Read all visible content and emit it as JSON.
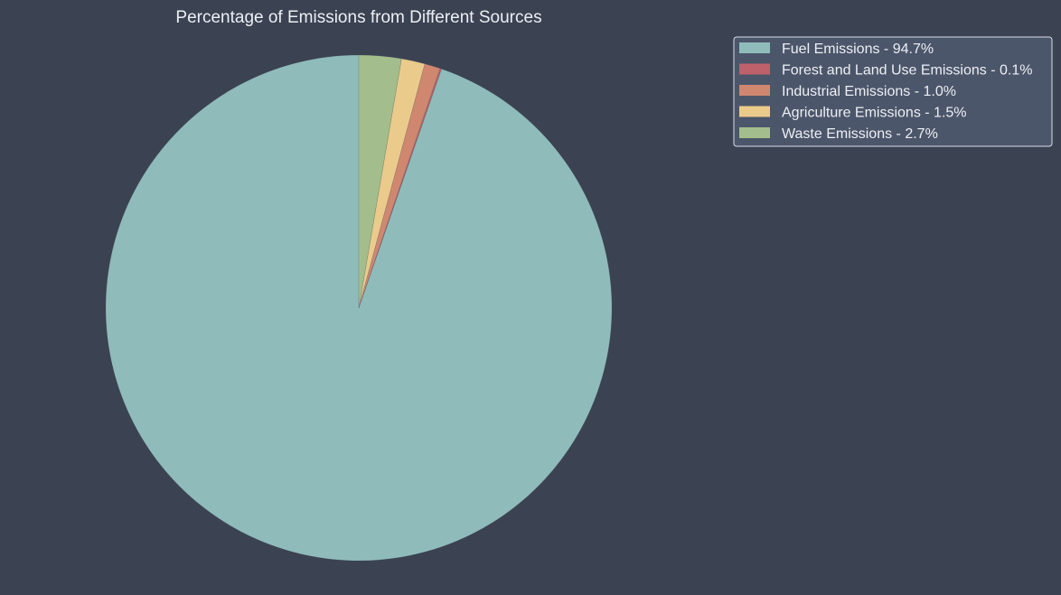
{
  "chart_data": {
    "type": "pie",
    "title": "Percentage of Emissions from Different Sources",
    "start_angle_deg": 90,
    "direction": "counterclockwise",
    "slices": [
      {
        "label": "Fuel Emissions",
        "value": 94.7,
        "legend": "Fuel Emissions - 94.7%",
        "color": "#8fbcbb"
      },
      {
        "label": "Forest and Land Use Emissions",
        "value": 0.1,
        "legend": "Forest and Land Use Emissions - 0.1%",
        "color": "#bf616a"
      },
      {
        "label": "Industrial Emissions",
        "value": 1.0,
        "legend": "Industrial Emissions - 1.0%",
        "color": "#d08770"
      },
      {
        "label": "Agriculture Emissions",
        "value": 1.5,
        "legend": "Agriculture Emissions - 1.5%",
        "color": "#ebcb8b"
      },
      {
        "label": "Waste Emissions",
        "value": 2.7,
        "legend": "Waste Emissions - 2.7%",
        "color": "#a3be8c"
      }
    ],
    "legend_position": "top-right",
    "background_color": "#3b4252",
    "text_color": "#eceff4",
    "legend_background": "#4c566a",
    "legend_border": "#d8dee9"
  }
}
